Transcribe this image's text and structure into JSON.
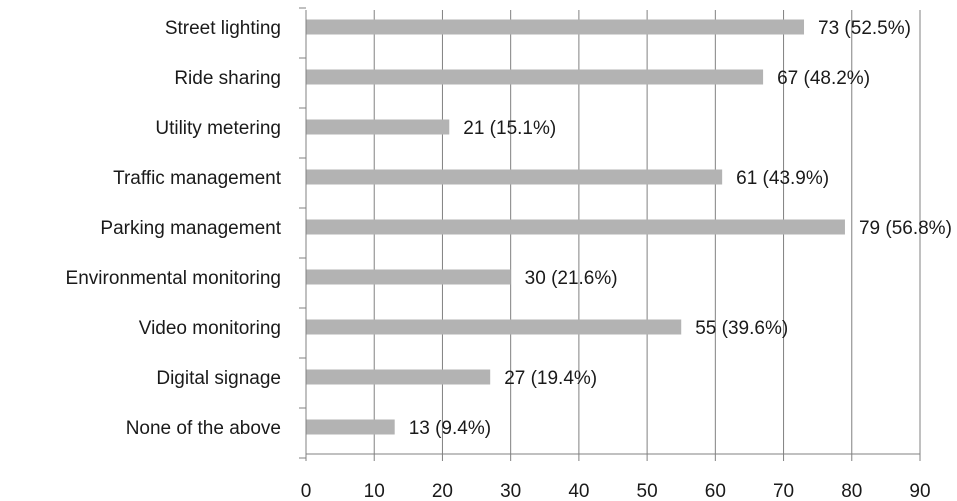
{
  "chart_data": {
    "type": "bar",
    "orientation": "horizontal",
    "title": "",
    "xlabel": "",
    "ylabel": "",
    "xlim": [
      0,
      90
    ],
    "x_ticks": [
      0,
      10,
      20,
      30,
      40,
      50,
      60,
      70,
      80,
      90
    ],
    "grid": "vertical",
    "bar_color": "#b3b3b3",
    "grid_color": "#808080",
    "categories": [
      "Street lighting",
      "Ride sharing",
      "Utility metering",
      "Traffic management",
      "Parking management",
      "Environmental monitoring",
      "Video monitoring",
      "Digital signage",
      "None of the above"
    ],
    "values": [
      73,
      67,
      21,
      61,
      79,
      30,
      55,
      27,
      13
    ],
    "data_labels": [
      "73 (52.5%)",
      "67 (48.2%)",
      "21 (15.1%)",
      "61 (43.9%)",
      "79 (56.8%)",
      "30 (21.6%)",
      "55 (39.6%)",
      "27 (19.4%)",
      "13 (9.4%)"
    ]
  }
}
